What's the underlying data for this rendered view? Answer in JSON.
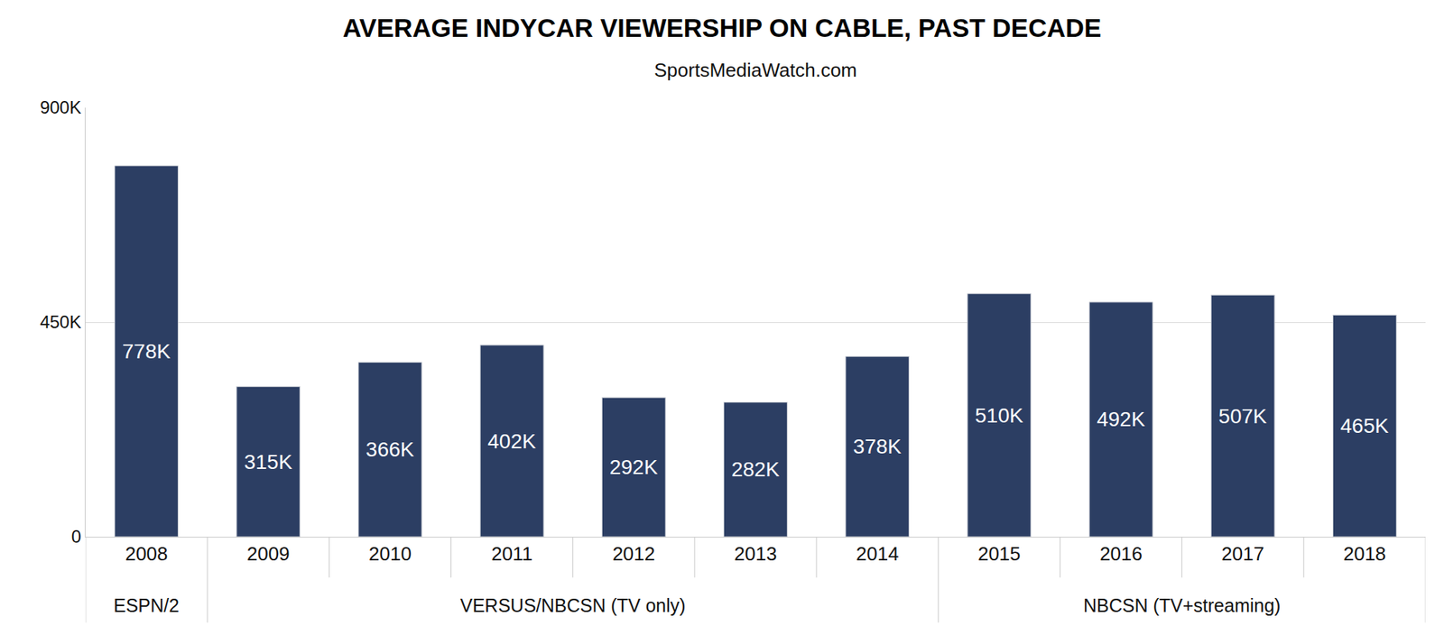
{
  "chart_data": {
    "type": "bar",
    "title": "AVERAGE INDYCAR VIEWERSHIP ON CABLE, PAST DECADE",
    "subtitle": "SportsMediaWatch.com",
    "categories": [
      "2008",
      "2009",
      "2010",
      "2011",
      "2012",
      "2013",
      "2014",
      "2015",
      "2016",
      "2017",
      "2018"
    ],
    "values": [
      778000,
      315000,
      366000,
      402000,
      292000,
      282000,
      378000,
      510000,
      492000,
      507000,
      465000
    ],
    "value_labels": [
      "778K",
      "315K",
      "366K",
      "402K",
      "292K",
      "282K",
      "378K",
      "510K",
      "492K",
      "507K",
      "465K"
    ],
    "color": "#2c3e63",
    "ylim": [
      0,
      900000
    ],
    "yticks": [
      0,
      {
        "value": 450000,
        "label": "450K"
      },
      {
        "value": 900000,
        "label": "900K"
      }
    ],
    "grid": true,
    "data_labels": true,
    "annotations": [
      {
        "text": "ESPN/2",
        "categories": [
          "2008"
        ]
      },
      {
        "text": "VERSUS/NBCSN (TV only)",
        "categories": [
          "2009",
          "2010",
          "2011",
          "2012",
          "2013",
          "2014"
        ]
      },
      {
        "text": "NBCSN (TV+streaming)",
        "categories": [
          "2015",
          "2016",
          "2017",
          "2018"
        ]
      }
    ]
  }
}
